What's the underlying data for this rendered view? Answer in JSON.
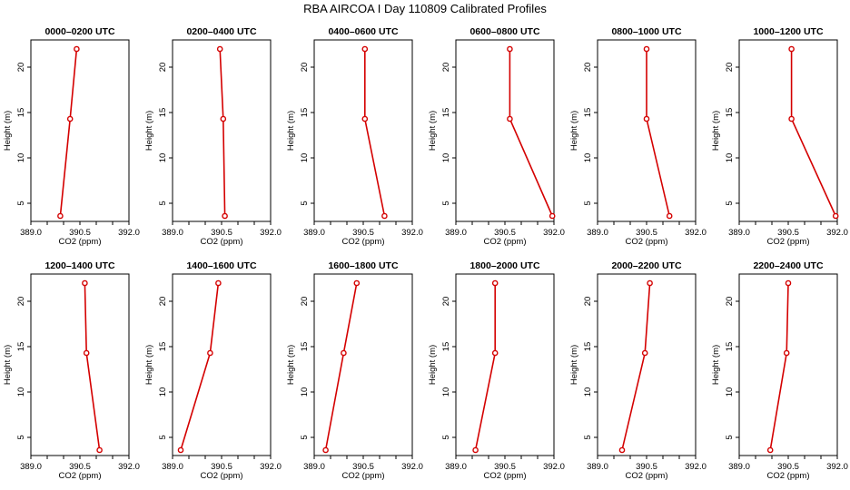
{
  "title": "RBA AIRCOA I  Day 110809  Calibrated Profiles",
  "colors": {
    "line": "#d40000",
    "axes": "#000000",
    "background": "#ffffff"
  },
  "chart_data": [
    {
      "type": "line",
      "title": "0000–0200 UTC",
      "xlabel": "CO2 (ppm)",
      "ylabel": "Height (m)",
      "xlim": [
        389.0,
        392.0
      ],
      "ylim": [
        3,
        23
      ],
      "xticks": [
        "389.0",
        "390.5",
        "392.0"
      ],
      "yticks": [
        "5",
        "10",
        "15",
        "20"
      ],
      "series": [
        {
          "x": [
            390.4,
            390.2,
            389.9
          ],
          "y": [
            22,
            14.3,
            3.6
          ]
        }
      ]
    },
    {
      "type": "line",
      "title": "0200–0400 UTC",
      "xlabel": "CO2 (ppm)",
      "ylabel": "Height (m)",
      "xlim": [
        389.0,
        392.0
      ],
      "ylim": [
        3,
        23
      ],
      "xticks": [
        "389.0",
        "390.5",
        "392.0"
      ],
      "yticks": [
        "5",
        "10",
        "15",
        "20"
      ],
      "series": [
        {
          "x": [
            390.45,
            390.55,
            390.6
          ],
          "y": [
            22,
            14.3,
            3.6
          ]
        }
      ]
    },
    {
      "type": "line",
      "title": "0400–0600 UTC",
      "xlabel": "CO2 (ppm)",
      "ylabel": "Height (m)",
      "xlim": [
        389.0,
        392.0
      ],
      "ylim": [
        3,
        23
      ],
      "xticks": [
        "389.0",
        "390.5",
        "392.0"
      ],
      "yticks": [
        "5",
        "10",
        "15",
        "20"
      ],
      "series": [
        {
          "x": [
            390.55,
            390.55,
            391.15
          ],
          "y": [
            22,
            14.3,
            3.6
          ]
        }
      ]
    },
    {
      "type": "line",
      "title": "0600–0800 UTC",
      "xlabel": "CO2 (ppm)",
      "ylabel": "Height (m)",
      "xlim": [
        389.0,
        392.0
      ],
      "ylim": [
        3,
        23
      ],
      "xticks": [
        "389.0",
        "390.5",
        "392.0"
      ],
      "yticks": [
        "5",
        "10",
        "15",
        "20"
      ],
      "series": [
        {
          "x": [
            390.65,
            390.65,
            391.95
          ],
          "y": [
            22,
            14.3,
            3.6
          ]
        }
      ]
    },
    {
      "type": "line",
      "title": "0800–1000 UTC",
      "xlabel": "CO2 (ppm)",
      "ylabel": "Height (m)",
      "xlim": [
        389.0,
        392.0
      ],
      "ylim": [
        3,
        23
      ],
      "xticks": [
        "389.0",
        "390.5",
        "392.0"
      ],
      "yticks": [
        "5",
        "10",
        "15",
        "20"
      ],
      "series": [
        {
          "x": [
            390.5,
            390.5,
            391.2
          ],
          "y": [
            22,
            14.3,
            3.6
          ]
        }
      ]
    },
    {
      "type": "line",
      "title": "1000–1200 UTC",
      "xlabel": "CO2 (ppm)",
      "ylabel": "Height (m)",
      "xlim": [
        389.0,
        392.0
      ],
      "ylim": [
        3,
        23
      ],
      "xticks": [
        "389.0",
        "390.5",
        "392.0"
      ],
      "yticks": [
        "5",
        "10",
        "15",
        "20"
      ],
      "series": [
        {
          "x": [
            390.6,
            390.6,
            391.95
          ],
          "y": [
            22,
            14.3,
            3.6
          ]
        }
      ]
    },
    {
      "type": "line",
      "title": "1200–1400 UTC",
      "xlabel": "CO2 (ppm)",
      "ylabel": "Height (m)",
      "xlim": [
        389.0,
        392.0
      ],
      "ylim": [
        3,
        23
      ],
      "xticks": [
        "389.0",
        "390.5",
        "392.0"
      ],
      "yticks": [
        "5",
        "10",
        "15",
        "20"
      ],
      "series": [
        {
          "x": [
            390.65,
            390.7,
            391.1
          ],
          "y": [
            22,
            14.3,
            3.6
          ]
        }
      ]
    },
    {
      "type": "line",
      "title": "1400–1600 UTC",
      "xlabel": "CO2 (ppm)",
      "ylabel": "Height (m)",
      "xlim": [
        389.0,
        392.0
      ],
      "ylim": [
        3,
        23
      ],
      "xticks": [
        "389.0",
        "390.5",
        "392.0"
      ],
      "yticks": [
        "5",
        "10",
        "15",
        "20"
      ],
      "series": [
        {
          "x": [
            390.4,
            390.15,
            389.25
          ],
          "y": [
            22,
            14.3,
            3.6
          ]
        }
      ]
    },
    {
      "type": "line",
      "title": "1600–1800 UTC",
      "xlabel": "CO2 (ppm)",
      "ylabel": "Height (m)",
      "xlim": [
        389.0,
        392.0
      ],
      "ylim": [
        3,
        23
      ],
      "xticks": [
        "389.0",
        "390.5",
        "392.0"
      ],
      "yticks": [
        "5",
        "10",
        "15",
        "20"
      ],
      "series": [
        {
          "x": [
            390.3,
            389.9,
            389.35
          ],
          "y": [
            22,
            14.3,
            3.6
          ]
        }
      ]
    },
    {
      "type": "line",
      "title": "1800–2000 UTC",
      "xlabel": "CO2 (ppm)",
      "ylabel": "Height (m)",
      "xlim": [
        389.0,
        392.0
      ],
      "ylim": [
        3,
        23
      ],
      "xticks": [
        "389.0",
        "390.5",
        "392.0"
      ],
      "yticks": [
        "5",
        "10",
        "15",
        "20"
      ],
      "series": [
        {
          "x": [
            390.2,
            390.2,
            389.6
          ],
          "y": [
            22,
            14.3,
            3.6
          ]
        }
      ]
    },
    {
      "type": "line",
      "title": "2000–2200 UTC",
      "xlabel": "CO2 (ppm)",
      "ylabel": "Height (m)",
      "xlim": [
        389.0,
        392.0
      ],
      "ylim": [
        3,
        23
      ],
      "xticks": [
        "389.0",
        "390.5",
        "392.0"
      ],
      "yticks": [
        "5",
        "10",
        "15",
        "20"
      ],
      "series": [
        {
          "x": [
            390.6,
            390.45,
            389.75
          ],
          "y": [
            22,
            14.3,
            3.6
          ]
        }
      ]
    },
    {
      "type": "line",
      "title": "2200–2400 UTC",
      "xlabel": "CO2 (ppm)",
      "ylabel": "Height (m)",
      "xlim": [
        389.0,
        392.0
      ],
      "ylim": [
        3,
        23
      ],
      "xticks": [
        "389.0",
        "390.5",
        "392.0"
      ],
      "yticks": [
        "5",
        "10",
        "15",
        "20"
      ],
      "series": [
        {
          "x": [
            390.5,
            390.45,
            389.95
          ],
          "y": [
            22,
            14.3,
            3.6
          ]
        }
      ]
    }
  ]
}
